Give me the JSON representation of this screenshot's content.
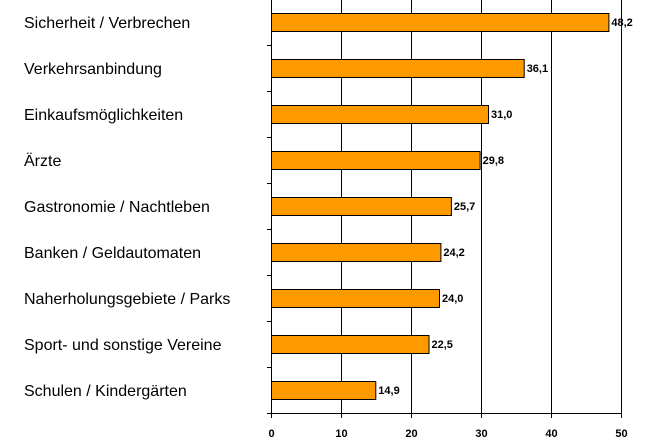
{
  "chart_data": {
    "type": "bar",
    "orientation": "horizontal",
    "categories": [
      "Sicherheit / Verbrechen",
      "Verkehrsanbindung",
      "Einkaufsmöglichkeiten",
      "Ärzte",
      "Gastronomie / Nachtleben",
      "Banken / Geldautomaten",
      "Naherholungsgebiete / Parks",
      "Sport- und sonstige Vereine",
      "Schulen / Kindergärten"
    ],
    "values": [
      48.2,
      36.1,
      31.0,
      29.8,
      25.7,
      24.2,
      24.0,
      22.5,
      14.9
    ],
    "value_labels": [
      "48,2",
      "36,1",
      "31,0",
      "29,8",
      "25,7",
      "24,2",
      "24,0",
      "22,5",
      "14,9"
    ],
    "xlim": [
      0,
      50
    ],
    "xticks": [
      0,
      10,
      20,
      30,
      40,
      50
    ],
    "xtick_labels": [
      "0",
      "10",
      "20",
      "30",
      "40",
      "50"
    ],
    "grid": "vertical",
    "legend": "none",
    "bar_color": "#ff9900",
    "title": "",
    "xlabel": "",
    "ylabel": ""
  }
}
